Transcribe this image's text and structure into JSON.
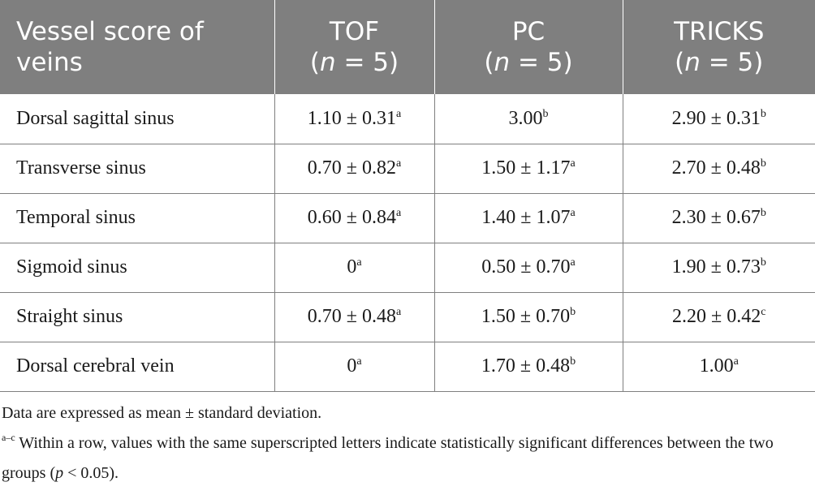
{
  "header": {
    "col0": "Vessel score of veins",
    "cols": [
      {
        "name": "TOF",
        "n_prefix": "(",
        "n_var": "n",
        "n_suffix": " = 5)"
      },
      {
        "name": "PC",
        "n_prefix": "(",
        "n_var": "n",
        "n_suffix": " = 5)"
      },
      {
        "name": "TRICKS",
        "n_prefix": "(",
        "n_var": "n",
        "n_suffix": " = 5)"
      }
    ]
  },
  "rows": [
    {
      "label": "Dorsal sagittal sinus",
      "cells": [
        {
          "value": "1.10 ± 0.31",
          "sup": "a"
        },
        {
          "value": "3.00",
          "sup": "b"
        },
        {
          "value": "2.90 ± 0.31",
          "sup": "b"
        }
      ]
    },
    {
      "label": "Transverse sinus",
      "cells": [
        {
          "value": "0.70 ± 0.82",
          "sup": "a"
        },
        {
          "value": "1.50 ± 1.17",
          "sup": "a"
        },
        {
          "value": "2.70 ± 0.48",
          "sup": "b"
        }
      ]
    },
    {
      "label": "Temporal sinus",
      "cells": [
        {
          "value": "0.60 ± 0.84",
          "sup": "a"
        },
        {
          "value": "1.40 ± 1.07",
          "sup": "a"
        },
        {
          "value": "2.30 ± 0.67",
          "sup": "b"
        }
      ]
    },
    {
      "label": "Sigmoid sinus",
      "cells": [
        {
          "value": "0",
          "sup": "a"
        },
        {
          "value": "0.50 ± 0.70",
          "sup": "a"
        },
        {
          "value": "1.90 ± 0.73",
          "sup": "b"
        }
      ]
    },
    {
      "label": "Straight sinus",
      "cells": [
        {
          "value": "0.70 ± 0.48",
          "sup": "a"
        },
        {
          "value": "1.50 ± 0.70",
          "sup": "b"
        },
        {
          "value": "2.20 ± 0.42",
          "sup": "c"
        }
      ]
    },
    {
      "label": "Dorsal cerebral vein",
      "cells": [
        {
          "value": "0",
          "sup": "a"
        },
        {
          "value": "1.70 ± 0.48",
          "sup": "b"
        },
        {
          "value": "1.00",
          "sup": "a"
        }
      ]
    }
  ],
  "footnotes": {
    "line1": "Data are expressed as mean ± standard deviation.",
    "mark": "a–c",
    "line2_before_p": " Within a row, values with the same superscripted letters indicate statistically significant differences between the two groups (",
    "p": "p",
    "line2_after_p": " < 0.05)."
  },
  "colors": {
    "header_bg": "#7f7f7f",
    "header_text": "#ffffff",
    "rule": "#7f7f7f",
    "body_text": "#1a1a1a"
  }
}
